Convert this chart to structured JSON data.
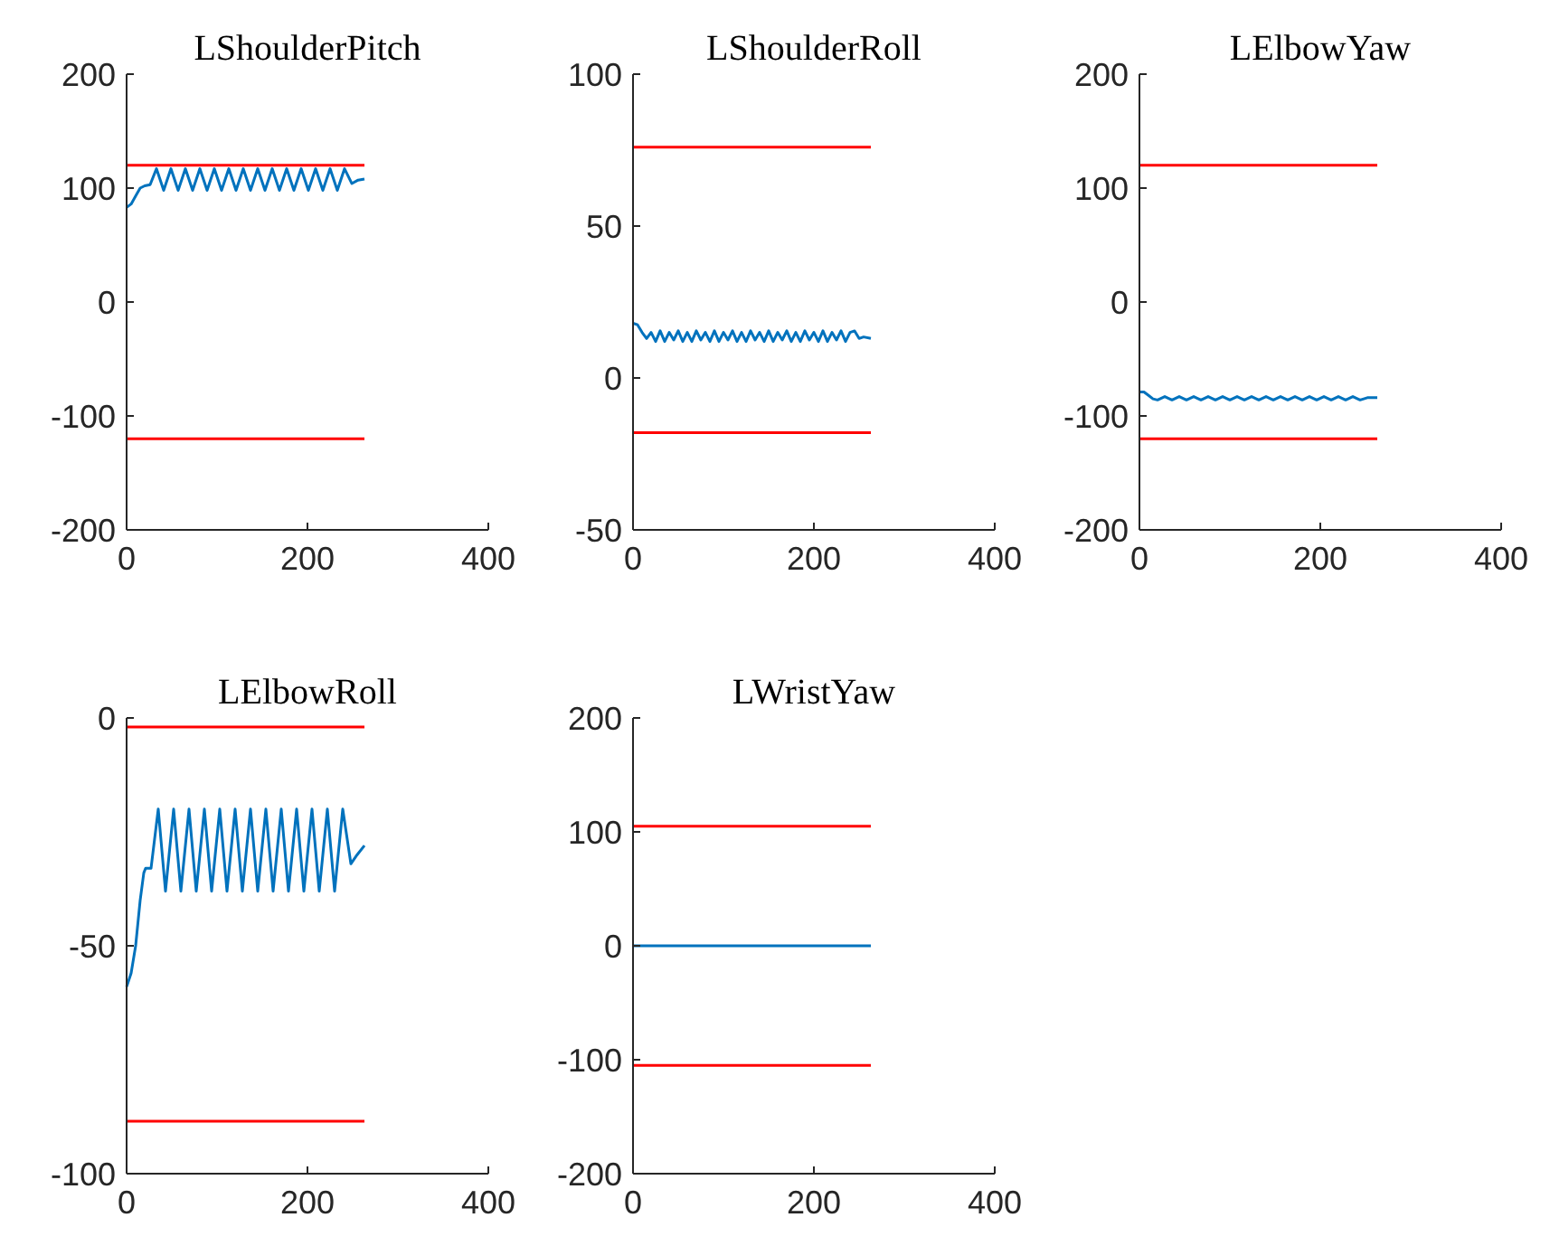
{
  "chart_data": [
    {
      "type": "line",
      "title": "LShoulderPitch",
      "xlim": [
        0,
        400
      ],
      "xticks": [
        0,
        200,
        400
      ],
      "ylim": [
        -200,
        200
      ],
      "yticks": [
        -200,
        -100,
        0,
        100,
        200
      ],
      "series": [
        {
          "color": "#ff0000",
          "x": [
            0,
            263
          ],
          "values": [
            120,
            120
          ]
        },
        {
          "color": "#ff0000",
          "x": [
            0,
            263
          ],
          "values": [
            -120,
            -120
          ]
        },
        {
          "color": "#0072bd",
          "x": [
            0,
            5,
            10,
            15,
            20,
            26,
            33,
            41,
            49,
            57,
            65,
            73,
            81,
            89,
            97,
            105,
            113,
            121,
            129,
            137,
            145,
            153,
            161,
            169,
            177,
            185,
            193,
            201,
            209,
            217,
            225,
            233,
            241,
            249,
            256,
            263
          ],
          "values": [
            83,
            86,
            93,
            100,
            102,
            103,
            117,
            98,
            117,
            98,
            117,
            98,
            117,
            98,
            117,
            98,
            117,
            98,
            117,
            98,
            117,
            98,
            117,
            98,
            117,
            98,
            117,
            98,
            117,
            98,
            117,
            98,
            117,
            104,
            107,
            108
          ]
        }
      ]
    },
    {
      "type": "line",
      "title": "LShoulderRoll",
      "xlim": [
        0,
        400
      ],
      "xticks": [
        0,
        200,
        400
      ],
      "ylim": [
        -50,
        100
      ],
      "yticks": [
        -50,
        0,
        50,
        100
      ],
      "series": [
        {
          "color": "#ff0000",
          "x": [
            0,
            263
          ],
          "values": [
            76,
            76
          ]
        },
        {
          "color": "#ff0000",
          "x": [
            0,
            263
          ],
          "values": [
            -18,
            -18
          ]
        },
        {
          "color": "#0072bd",
          "x": [
            0,
            5,
            10,
            15,
            20,
            25,
            30,
            35,
            40,
            45,
            50,
            55,
            60,
            65,
            70,
            75,
            80,
            85,
            90,
            95,
            100,
            105,
            110,
            115,
            120,
            125,
            130,
            135,
            140,
            145,
            150,
            155,
            160,
            165,
            170,
            175,
            180,
            185,
            190,
            195,
            200,
            205,
            210,
            215,
            220,
            225,
            230,
            235,
            240,
            245,
            250,
            255,
            263
          ],
          "values": [
            18,
            17.5,
            15,
            13,
            15,
            12,
            15.5,
            12,
            15,
            12.5,
            15.5,
            12,
            15,
            12,
            15.5,
            12.5,
            15,
            12,
            15.5,
            12,
            15,
            12.5,
            15.5,
            12,
            15,
            12,
            15.5,
            12.5,
            15,
            12,
            15.5,
            12,
            15,
            12.5,
            15.5,
            12,
            15,
            12,
            15.5,
            12.5,
            15,
            12,
            15.5,
            12,
            15,
            12.5,
            15.5,
            12,
            15,
            15.5,
            13,
            13.5,
            13
          ]
        }
      ]
    },
    {
      "type": "line",
      "title": "LElbowYaw",
      "xlim": [
        0,
        400
      ],
      "xticks": [
        0,
        200,
        400
      ],
      "ylim": [
        -200,
        200
      ],
      "yticks": [
        -200,
        -100,
        0,
        100,
        200
      ],
      "series": [
        {
          "color": "#ff0000",
          "x": [
            0,
            263
          ],
          "values": [
            120,
            120
          ]
        },
        {
          "color": "#ff0000",
          "x": [
            0,
            263
          ],
          "values": [
            -120,
            -120
          ]
        },
        {
          "color": "#0072bd",
          "x": [
            0,
            5,
            10,
            15,
            20,
            28,
            36,
            44,
            52,
            60,
            68,
            76,
            84,
            92,
            100,
            108,
            116,
            124,
            132,
            140,
            148,
            156,
            164,
            172,
            180,
            188,
            196,
            204,
            212,
            220,
            228,
            236,
            244,
            252,
            263
          ],
          "values": [
            -79,
            -79,
            -82,
            -85,
            -86,
            -83,
            -86,
            -83,
            -86,
            -83,
            -86,
            -83,
            -86,
            -83,
            -86,
            -83,
            -86,
            -83,
            -86,
            -83,
            -86,
            -83,
            -86,
            -83,
            -86,
            -83,
            -86,
            -83,
            -86,
            -83,
            -86,
            -83,
            -86,
            -84,
            -84
          ]
        }
      ]
    },
    {
      "type": "line",
      "title": "LElbowRoll",
      "xlim": [
        0,
        400
      ],
      "xticks": [
        0,
        200,
        400
      ],
      "ylim": [
        -100,
        0
      ],
      "yticks": [
        -100,
        -50,
        0
      ],
      "series": [
        {
          "color": "#ff0000",
          "x": [
            0,
            263
          ],
          "values": [
            -2,
            -2
          ]
        },
        {
          "color": "#ff0000",
          "x": [
            0,
            263
          ],
          "values": [
            -88.5,
            -88.5
          ]
        },
        {
          "color": "#0072bd",
          "x": [
            0,
            5,
            10,
            15,
            19,
            21,
            27,
            35,
            43,
            52,
            60,
            69,
            77,
            86,
            94,
            103,
            111,
            120,
            128,
            137,
            145,
            154,
            162,
            171,
            179,
            188,
            196,
            205,
            213,
            222,
            230,
            239,
            248,
            255,
            263
          ],
          "values": [
            -59,
            -56,
            -50,
            -40,
            -34,
            -33,
            -33,
            -20,
            -38,
            -20,
            -38,
            -20,
            -38,
            -20,
            -38,
            -20,
            -38,
            -20,
            -38,
            -20,
            -38,
            -20,
            -38,
            -20,
            -38,
            -20,
            -38,
            -20,
            -38,
            -20,
            -38,
            -20,
            -32,
            -30,
            -28
          ]
        }
      ]
    },
    {
      "type": "line",
      "title": "LWristYaw",
      "xlim": [
        0,
        400
      ],
      "xticks": [
        0,
        200,
        400
      ],
      "ylim": [
        -200,
        200
      ],
      "yticks": [
        -200,
        -100,
        0,
        100,
        200
      ],
      "series": [
        {
          "color": "#ff0000",
          "x": [
            0,
            263
          ],
          "values": [
            105,
            105
          ]
        },
        {
          "color": "#ff0000",
          "x": [
            0,
            263
          ],
          "values": [
            -105,
            -105
          ]
        },
        {
          "color": "#0072bd",
          "x": [
            0,
            263
          ],
          "values": [
            0,
            0
          ]
        }
      ]
    }
  ]
}
